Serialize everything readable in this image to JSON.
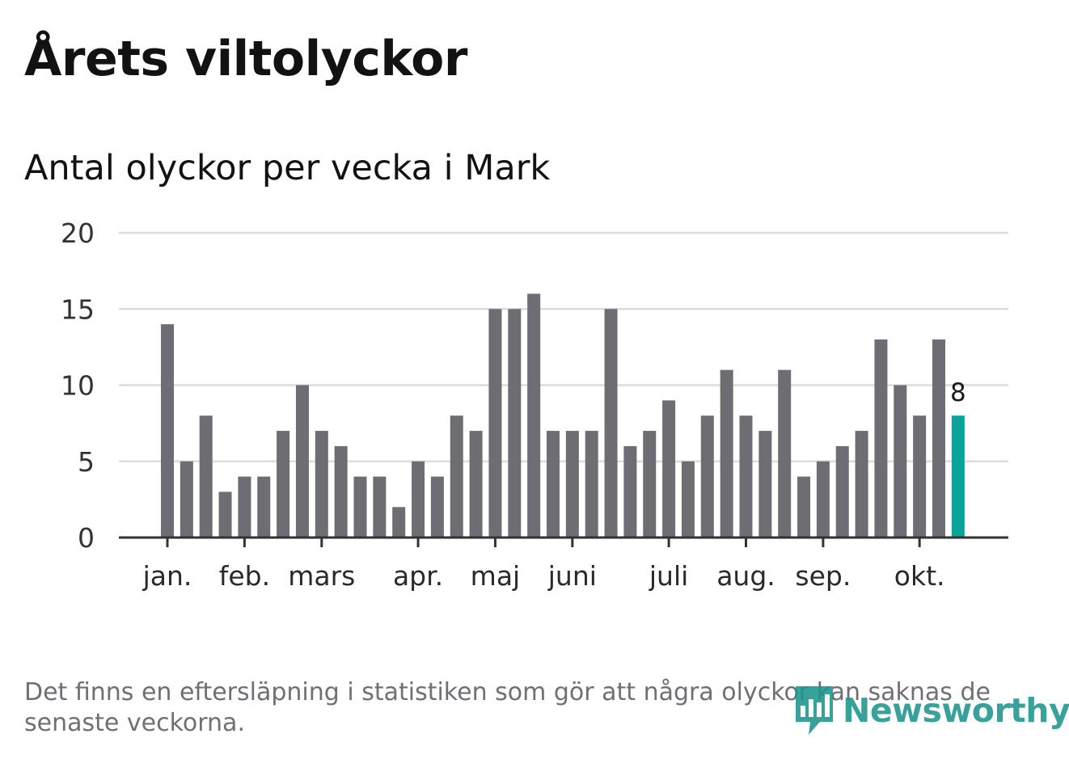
{
  "title": "Årets viltolyckor",
  "subtitle": "Antal olyckor per vecka i Mark",
  "footnote": "Det finns en eftersläpning i statistiken som gör att några olyckor kan saknas de senaste veckorna.",
  "logo": {
    "text": "Newsworthy",
    "icon": "bar-chart-bubble-icon"
  },
  "colors": {
    "bar": "#6e6d73",
    "highlight": "#0aa39a",
    "grid": "#dcdcdc",
    "axis": "#333333",
    "brand": "#1d958c"
  },
  "chart_data": {
    "type": "bar",
    "values": [
      14,
      5,
      8,
      3,
      4,
      4,
      7,
      10,
      7,
      6,
      4,
      4,
      2,
      5,
      4,
      8,
      7,
      15,
      15,
      16,
      7,
      7,
      7,
      15,
      6,
      7,
      9,
      5,
      8,
      11,
      8,
      7,
      11,
      4,
      5,
      6,
      7,
      13,
      10,
      8,
      13,
      8
    ],
    "highlight_index": 41,
    "highlight_label": "8",
    "ylim": [
      0,
      20
    ],
    "yticks": [
      0,
      5,
      10,
      15,
      20
    ],
    "month_ticks": [
      {
        "label": "jan.",
        "bar": 0
      },
      {
        "label": "feb.",
        "bar": 4
      },
      {
        "label": "mars",
        "bar": 8
      },
      {
        "label": "apr.",
        "bar": 13
      },
      {
        "label": "maj",
        "bar": 17
      },
      {
        "label": "juni",
        "bar": 21
      },
      {
        "label": "juli",
        "bar": 26
      },
      {
        "label": "aug.",
        "bar": 30
      },
      {
        "label": "sep.",
        "bar": 34
      },
      {
        "label": "okt.",
        "bar": 39
      }
    ],
    "grid": true,
    "legend": "none"
  }
}
